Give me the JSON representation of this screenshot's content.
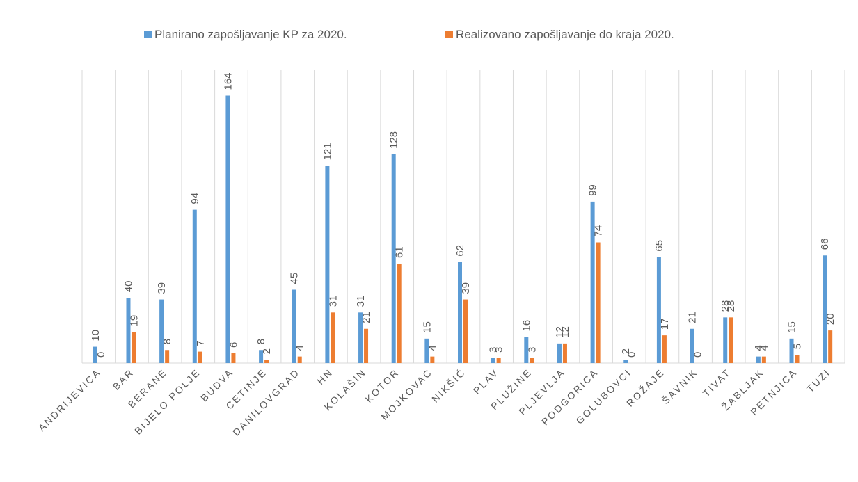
{
  "chart_data": {
    "type": "bar",
    "categories": [
      "ANDRIJEVICA",
      "BAR",
      "BERANE",
      "BIJELO POLJE",
      "BUDVA",
      "CETINJE",
      "DANILOVGRAD",
      "HN",
      "KOLAŠIN",
      "KOTOR",
      "MOJKOVAC",
      "NIKŠIĆ",
      "PLAV",
      "PLUŽINE",
      "PLJEVLJA",
      "PODGORICA",
      "GOLUBOVCI",
      "ROŽAJE",
      "ŠAVNIK",
      "TIVAT",
      "ŽABLJAK",
      "PETNJICA",
      "TUZI"
    ],
    "series": [
      {
        "name": "Planirano zapošljavanje KP za 2020.",
        "color": "#5b9bd5",
        "values": [
          10,
          40,
          39,
          94,
          164,
          8,
          45,
          121,
          31,
          128,
          15,
          62,
          3,
          16,
          12,
          99,
          2,
          65,
          21,
          28,
          4,
          15,
          66
        ]
      },
      {
        "name": "Realizovano zapošljavanje do kraja 2020.",
        "color": "#ed7d31",
        "values": [
          0,
          19,
          8,
          7,
          6,
          2,
          4,
          31,
          21,
          61,
          4,
          39,
          3,
          3,
          12,
          74,
          0,
          17,
          0,
          28,
          4,
          5,
          20
        ]
      }
    ],
    "ylim": [
      0,
      180
    ],
    "grid": true,
    "legend": "top"
  }
}
